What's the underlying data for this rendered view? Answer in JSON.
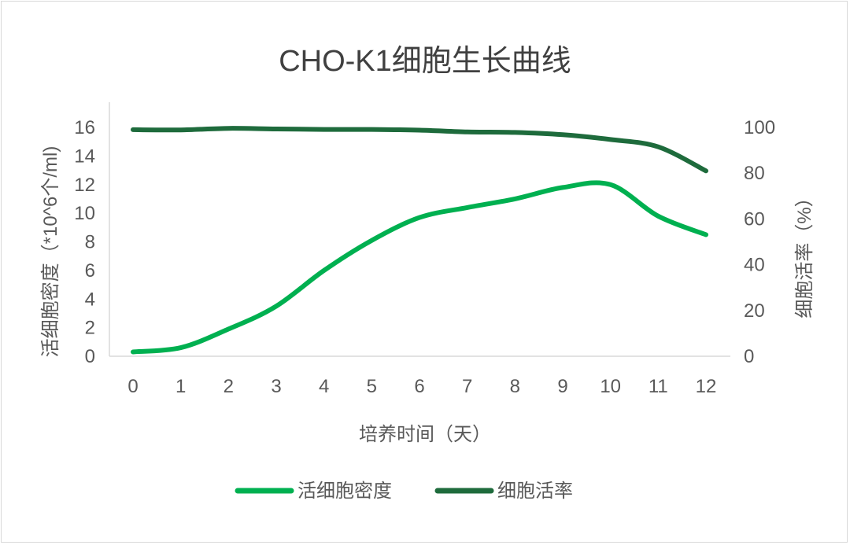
{
  "chart_data": {
    "type": "line",
    "title": "CHO-K1细胞生长曲线",
    "xlabel": "培养时间（天）",
    "ylabel": "活细胞密度（*10^6个/ml)",
    "y2label": "细胞活率（%）",
    "x": [
      0,
      1,
      2,
      3,
      4,
      5,
      6,
      7,
      8,
      9,
      10,
      11,
      12
    ],
    "ylim": [
      0,
      16
    ],
    "yticks": [
      0,
      2,
      4,
      6,
      8,
      10,
      12,
      14,
      16
    ],
    "y2lim": [
      0,
      100
    ],
    "y2ticks": [
      0,
      20,
      40,
      60,
      80,
      100
    ],
    "grid": false,
    "legend_position": "bottom",
    "series": [
      {
        "name": "活细胞密度",
        "axis": "left",
        "color": "#00b050",
        "values": [
          0.3,
          0.6,
          1.9,
          3.5,
          6.0,
          8.1,
          9.7,
          10.4,
          11.0,
          11.8,
          12.0,
          9.8,
          8.5
        ]
      },
      {
        "name": "细胞活率",
        "axis": "right",
        "color": "#1e6b3c",
        "values": [
          99.0,
          98.9,
          99.6,
          99.3,
          99.1,
          99.1,
          98.8,
          98.0,
          97.8,
          96.8,
          94.7,
          91.5,
          81.0
        ]
      }
    ]
  }
}
